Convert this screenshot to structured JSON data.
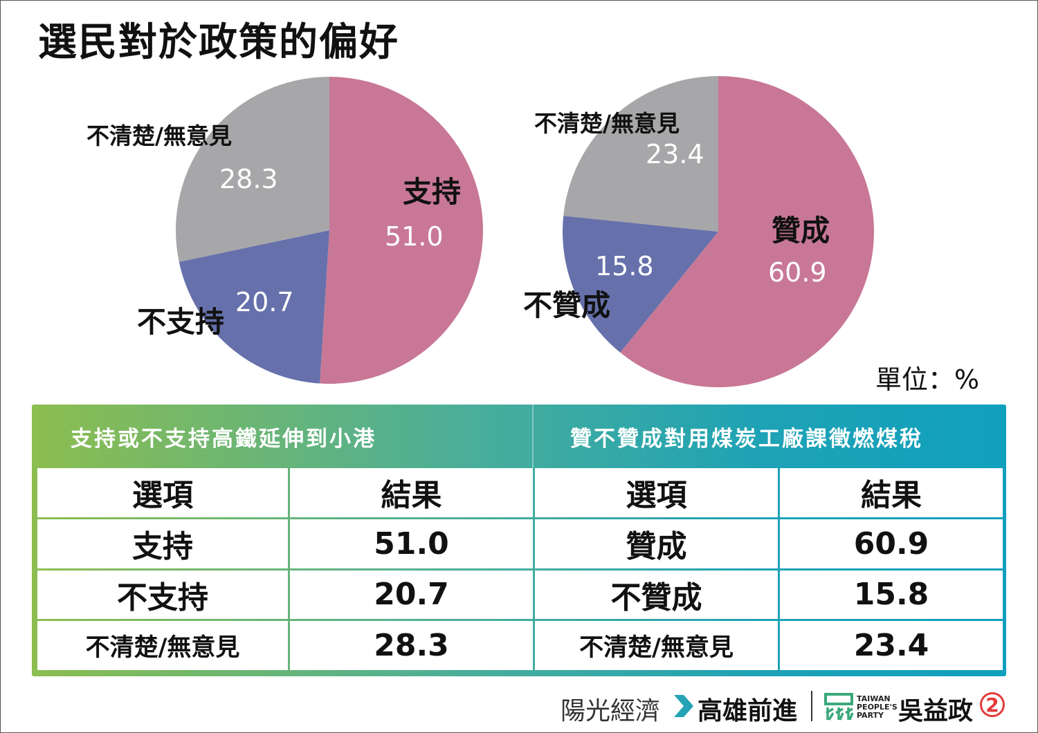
{
  "title": "選民對於政策的偏好",
  "unit_label": "單位：%",
  "chart_data": [
    {
      "type": "pie",
      "title": "支持或不支持高鐵延伸到小港",
      "slices": [
        {
          "label": "支持",
          "value": 51.0,
          "value_text": "51.0",
          "color": "#c87896"
        },
        {
          "label": "不支持",
          "value": 20.7,
          "value_text": "20.7",
          "color": "#6671ab"
        },
        {
          "label": "不清楚/無意見",
          "value": 28.3,
          "value_text": "28.3",
          "color": "#a7a6a9"
        }
      ]
    },
    {
      "type": "pie",
      "title": "贊不贊成對用煤炭工廠課徵燃煤稅",
      "slices": [
        {
          "label": "贊成",
          "value": 60.9,
          "value_text": "60.9",
          "color": "#c87896"
        },
        {
          "label": "不贊成",
          "value": 15.8,
          "value_text": "15.8",
          "color": "#6671ab"
        },
        {
          "label": "不清楚/無意見",
          "value": 23.4,
          "value_text": "23.4",
          "color": "#a7a6a9"
        }
      ]
    }
  ],
  "table": {
    "left_title": "支持或不支持高鐵延伸到小港",
    "right_title": "贊不贊成對用煤炭工廠課徵燃煤稅",
    "col_option": "選項",
    "col_result": "結果",
    "left_rows": [
      {
        "option": "支持",
        "result": "51.0"
      },
      {
        "option": "不支持",
        "result": "20.7"
      },
      {
        "option": "不清楚/無意見",
        "result": "28.3"
      }
    ],
    "right_rows": [
      {
        "option": "贊成",
        "result": "60.9"
      },
      {
        "option": "不贊成",
        "result": "15.8"
      },
      {
        "option": "不清楚/無意見",
        "result": "23.4"
      }
    ]
  },
  "footer": {
    "slogan_a": "陽光經濟",
    "slogan_b": "高雄前進",
    "party": "TAIWAN PEOPLE'S PARTY",
    "candidate": "吳益政",
    "number": "2"
  }
}
